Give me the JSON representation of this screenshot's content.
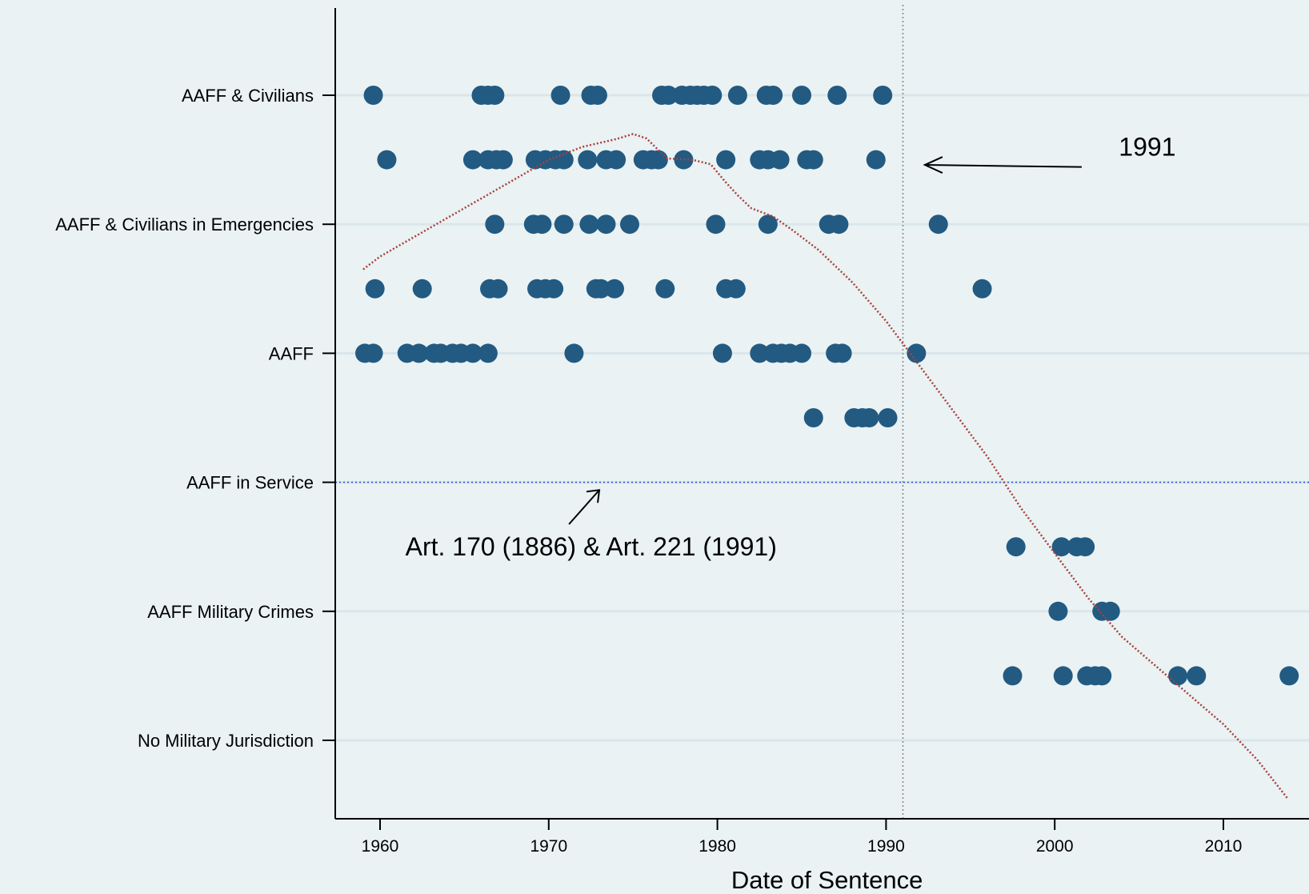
{
  "chart_data": {
    "type": "scatter",
    "xlabel": "Date of Sentence",
    "ylabel": "",
    "xlim": [
      1957.8,
      2014.8
    ],
    "ylim": [
      -0.6,
      12
    ],
    "x_ticks": [
      1960,
      1970,
      1980,
      1990,
      2000,
      2010
    ],
    "y_ticks": [
      {
        "value": 10,
        "label": "AAFF & Civilians"
      },
      {
        "value": 8,
        "label": "AAFF & Civilians in Emergencies"
      },
      {
        "value": 6,
        "label": "AAFF"
      },
      {
        "value": 4,
        "label": "AAFF in Service"
      },
      {
        "value": 2,
        "label": "AAFF Military Crimes"
      },
      {
        "value": 0,
        "label": "No Military Jurisdiction"
      }
    ],
    "grid": true,
    "colors": {
      "points": "#225a82",
      "trend": "#a8403f",
      "ref_line": "#2f5bd8",
      "vline": "#8a8a8a",
      "background": "#eaf2f3",
      "gridline": "#d9e6ea"
    },
    "series": [
      {
        "type": "scatter",
        "points": [
          [
            1959.6,
            10
          ],
          [
            1966,
            10
          ],
          [
            1966.4,
            10
          ],
          [
            1966.8,
            10
          ],
          [
            1970.7,
            10
          ],
          [
            1972.5,
            10
          ],
          [
            1972.9,
            10
          ],
          [
            1976.7,
            10
          ],
          [
            1977.1,
            10
          ],
          [
            1977.9,
            10
          ],
          [
            1978.4,
            10
          ],
          [
            1978.8,
            10
          ],
          [
            1979.2,
            10
          ],
          [
            1979.7,
            10
          ],
          [
            1981.2,
            10
          ],
          [
            1982.9,
            10
          ],
          [
            1983.3,
            10
          ],
          [
            1985,
            10
          ],
          [
            1987.1,
            10
          ],
          [
            1989.8,
            10
          ],
          [
            1960.4,
            9
          ],
          [
            1965.5,
            9
          ],
          [
            1966.4,
            9
          ],
          [
            1966.9,
            9
          ],
          [
            1967.3,
            9
          ],
          [
            1969.2,
            9
          ],
          [
            1969.8,
            9
          ],
          [
            1970.4,
            9
          ],
          [
            1970.9,
            9
          ],
          [
            1972.3,
            9
          ],
          [
            1973.4,
            9
          ],
          [
            1974,
            9
          ],
          [
            1975.6,
            9
          ],
          [
            1976.1,
            9
          ],
          [
            1976.5,
            9
          ],
          [
            1978,
            9
          ],
          [
            1980.5,
            9
          ],
          [
            1982.5,
            9
          ],
          [
            1983,
            9
          ],
          [
            1983.7,
            9
          ],
          [
            1985.3,
            9
          ],
          [
            1985.7,
            9
          ],
          [
            1989.4,
            9
          ],
          [
            1966.8,
            8
          ],
          [
            1969.1,
            8
          ],
          [
            1969.6,
            8
          ],
          [
            1970.9,
            8
          ],
          [
            1972.4,
            8
          ],
          [
            1973.4,
            8
          ],
          [
            1974.8,
            8
          ],
          [
            1979.9,
            8
          ],
          [
            1983,
            8
          ],
          [
            1986.6,
            8
          ],
          [
            1987.2,
            8
          ],
          [
            1993.1,
            8
          ],
          [
            1959.7,
            7
          ],
          [
            1962.5,
            7
          ],
          [
            1966.5,
            7
          ],
          [
            1967,
            7
          ],
          [
            1969.3,
            7
          ],
          [
            1969.8,
            7
          ],
          [
            1970.3,
            7
          ],
          [
            1972.8,
            7
          ],
          [
            1973.1,
            7
          ],
          [
            1973.9,
            7
          ],
          [
            1976.9,
            7
          ],
          [
            1980.5,
            7
          ],
          [
            1981.1,
            7
          ],
          [
            1995.7,
            7
          ],
          [
            1959.1,
            6
          ],
          [
            1959.6,
            6
          ],
          [
            1961.6,
            6
          ],
          [
            1962.3,
            6
          ],
          [
            1963.2,
            6
          ],
          [
            1963.6,
            6
          ],
          [
            1964.3,
            6
          ],
          [
            1964.8,
            6
          ],
          [
            1965.5,
            6
          ],
          [
            1966.4,
            6
          ],
          [
            1971.5,
            6
          ],
          [
            1980.3,
            6
          ],
          [
            1982.5,
            6
          ],
          [
            1983.3,
            6
          ],
          [
            1983.8,
            6
          ],
          [
            1984.3,
            6
          ],
          [
            1985,
            6
          ],
          [
            1987,
            6
          ],
          [
            1987.4,
            6
          ],
          [
            1991.8,
            6
          ],
          [
            1985.7,
            5
          ],
          [
            1988.1,
            5
          ],
          [
            1988.6,
            5
          ],
          [
            1989,
            5
          ],
          [
            1990.1,
            5
          ],
          [
            1997.7,
            3
          ],
          [
            2000.4,
            3
          ],
          [
            2001.3,
            3
          ],
          [
            2001.8,
            3
          ],
          [
            2000.2,
            2
          ],
          [
            2002.8,
            2
          ],
          [
            2003.3,
            2
          ],
          [
            1997.5,
            1
          ],
          [
            2000.5,
            1
          ],
          [
            2001.9,
            1
          ],
          [
            2002.4,
            1
          ],
          [
            2002.8,
            1
          ],
          [
            2007.3,
            1
          ],
          [
            2008.4,
            1
          ],
          [
            2013.9,
            1
          ]
        ]
      },
      {
        "type": "line",
        "style": "dotted",
        "points": [
          [
            1959,
            7.3
          ],
          [
            1960,
            7.5
          ],
          [
            1962,
            7.8
          ],
          [
            1964,
            8.1
          ],
          [
            1966,
            8.4
          ],
          [
            1968,
            8.7
          ],
          [
            1970,
            9
          ],
          [
            1972,
            9.2
          ],
          [
            1974,
            9.32
          ],
          [
            1975,
            9.4
          ],
          [
            1975.8,
            9.33
          ],
          [
            1976.5,
            9.15
          ],
          [
            1977,
            9.02
          ],
          [
            1978.5,
            9.0
          ],
          [
            1979.6,
            8.93
          ],
          [
            1980.5,
            8.65
          ],
          [
            1981.2,
            8.45
          ],
          [
            1982,
            8.25
          ],
          [
            1983.3,
            8.12
          ],
          [
            1984.5,
            7.9
          ],
          [
            1986,
            7.6
          ],
          [
            1988,
            7.1
          ],
          [
            1990,
            6.5
          ],
          [
            1992,
            5.8
          ],
          [
            1994,
            5.1
          ],
          [
            1996,
            4.4
          ],
          [
            1998,
            3.6
          ],
          [
            2000,
            2.9
          ],
          [
            2002,
            2.2
          ],
          [
            2004,
            1.6
          ],
          [
            2006,
            1.15
          ],
          [
            2008,
            0.7
          ],
          [
            2010,
            0.25
          ],
          [
            2012,
            -0.3
          ],
          [
            2013.8,
            -0.9
          ]
        ]
      }
    ],
    "reference_lines": [
      {
        "orientation": "horizontal",
        "y": 4,
        "style": "dotted"
      },
      {
        "orientation": "vertical",
        "x": 1991,
        "style": "dotted"
      }
    ],
    "annotations": [
      {
        "text": "1991",
        "x": 2003.8,
        "y": 9.2
      },
      {
        "text": "Art. 170 (1886) & Art. 221 (1991)",
        "x": 1961.5,
        "y": 3
      }
    ]
  }
}
